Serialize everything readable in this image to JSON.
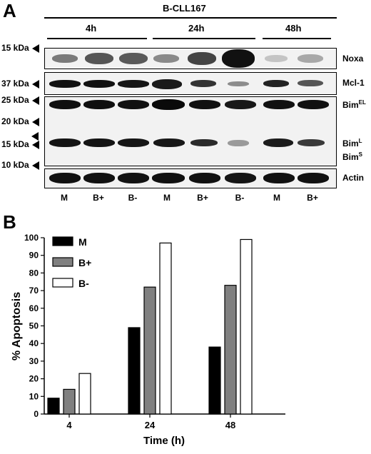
{
  "panel_a": {
    "letter": "A",
    "sample": "B-CLL167",
    "timepoints": [
      "4h",
      "24h",
      "48h"
    ],
    "markers": [
      "15 kDa",
      "37 kDa",
      "25 kDa",
      "20 kDa",
      "15 kDa",
      "10 kDa"
    ],
    "blot_labels": {
      "noxa": "Noxa",
      "mcl1": "Mcl-1",
      "bim_el_base": "Bim",
      "bim_el_sup": "EL",
      "bim_l_base": "Bim",
      "bim_l_sup": "L",
      "bim_s_base": "Bim",
      "bim_s_sup": "S",
      "actin": "Actin"
    },
    "lanes": [
      "M",
      "B+",
      "B-",
      "M",
      "B+",
      "B-",
      "M",
      "B+"
    ]
  },
  "panel_b": {
    "letter": "B",
    "chart_data": {
      "type": "bar",
      "categories": [
        "4",
        "24",
        "48"
      ],
      "series": [
        {
          "name": "M",
          "values": [
            9,
            49,
            38
          ],
          "color": "#000000"
        },
        {
          "name": "B+",
          "values": [
            14,
            72,
            73
          ],
          "color": "#808080"
        },
        {
          "name": "B-",
          "values": [
            23,
            97,
            99
          ],
          "color": "#ffffff"
        }
      ],
      "xlabel": "Time (h)",
      "ylabel": "% Apoptosis",
      "ylim": [
        0,
        100
      ],
      "yticks": [
        "0",
        "10",
        "20",
        "30",
        "40",
        "50",
        "60",
        "70",
        "80",
        "90",
        "100"
      ],
      "legend_position": "top-left",
      "grid": false
    }
  }
}
